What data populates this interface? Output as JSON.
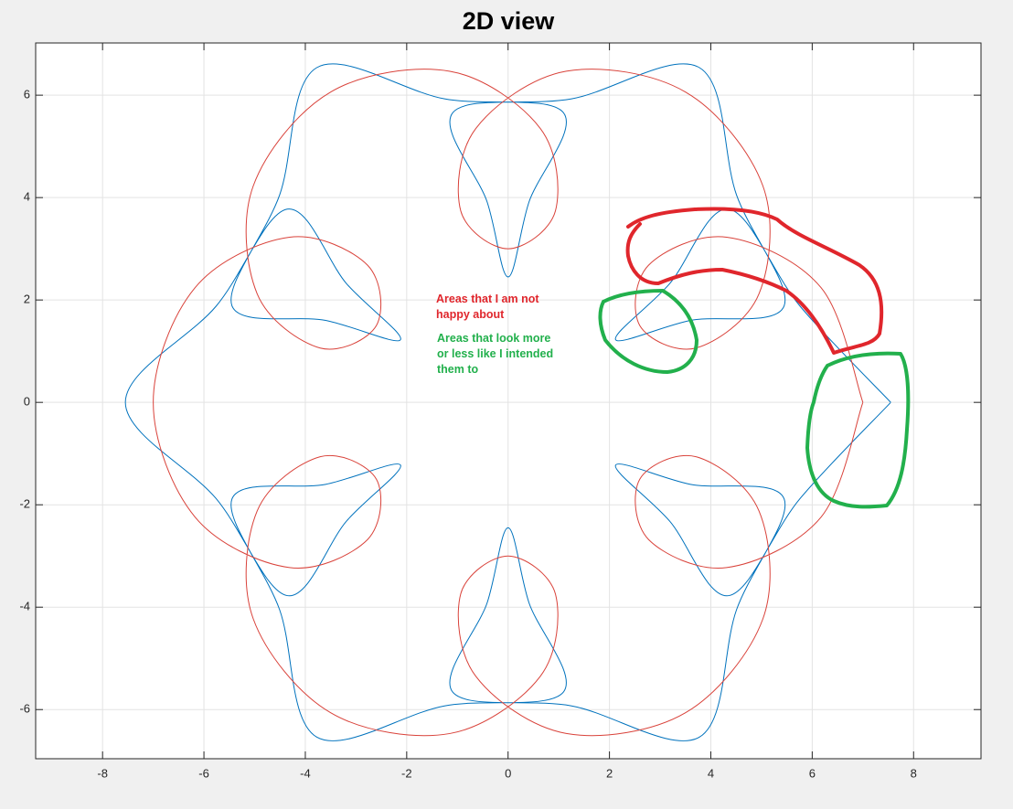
{
  "chart_data": {
    "type": "line",
    "title": "2D view",
    "xlim": [
      -9.32,
      9.33
    ],
    "ylim": [
      -6.96,
      7.02
    ],
    "xticks": [
      -8,
      -6,
      -4,
      -2,
      0,
      2,
      4,
      6,
      8
    ],
    "yticks": [
      -6,
      -4,
      -2,
      0,
      2,
      4,
      6
    ],
    "grid": true,
    "series": [
      {
        "color": "#0072bd",
        "x": [
          7.55,
          5.761,
          4.357,
          3.186,
          2.122,
          3.599,
          5.447,
          4.507,
          3.775,
          1.254,
          -1.09,
          -0.414,
          0,
          0.414,
          1.091,
          -1.253,
          -3.775,
          -4.507,
          -5.447,
          -3.599,
          -2.122,
          -3.186,
          -4.357,
          -5.761,
          -7.55,
          -5.761,
          -4.357,
          -3.186,
          -2.122,
          -3.599,
          -5.447,
          -4.507,
          -3.775,
          -1.254,
          1.09,
          0.414,
          0,
          -0.414,
          -1.091,
          1.253,
          3.775,
          4.507,
          5.447,
          3.599,
          2.122,
          3.186,
          4.357,
          5.761,
          7.55
        ],
        "y": [
          0,
          1.878,
          3.774,
          2.317,
          1.225,
          1.601,
          1.886,
          4.05,
          6.538,
          5.928,
          5.66,
          3.918,
          2.45,
          3.918,
          5.66,
          5.928,
          6.538,
          4.05,
          1.886,
          1.601,
          1.225,
          2.317,
          3.774,
          1.878,
          0,
          -1.878,
          -3.774,
          -2.317,
          -1.225,
          -1.601,
          -1.886,
          -4.05,
          -6.538,
          -5.928,
          -5.66,
          -3.918,
          -2.45,
          -3.918,
          -5.66,
          -5.928,
          -6.538,
          -4.05,
          -1.886,
          -1.601,
          -1.225,
          -2.317,
          -3.774,
          -1.878,
          0
        ]
      },
      {
        "color": "#d9423a",
        "x": [
          7,
          6.175,
          4.312,
          2.772,
          2.598,
          3.706,
          4.95,
          5.027,
          3.5,
          1.148,
          -0.638,
          -0.934,
          0,
          0.934,
          0.638,
          -1.148,
          -3.5,
          -5.027,
          -4.95,
          -3.706,
          -2.598,
          -2.772,
          -4.312,
          -6.175,
          -7,
          -6.175,
          -4.312,
          -2.772,
          -2.598,
          -3.706,
          -4.95,
          -5.027,
          -3.5,
          -1.148,
          0.638,
          0.934,
          0,
          -0.934,
          -0.638,
          1.148,
          3.5,
          5.027,
          4.95,
          3.706,
          2.598,
          2.772,
          4.312,
          6.175,
          7
        ],
        "y": [
          0,
          2.24,
          3.226,
          2.679,
          1.5,
          1.061,
          2.121,
          4.228,
          6.062,
          6.468,
          5.347,
          3.741,
          3,
          3.74,
          5.348,
          6.467,
          6.062,
          4.228,
          2.121,
          1.061,
          1.5,
          2.679,
          3.226,
          2.24,
          0,
          -2.24,
          -3.226,
          -2.679,
          -1.5,
          -1.061,
          -2.121,
          -4.228,
          -6.062,
          -6.468,
          -5.347,
          -3.741,
          -3,
          -3.74,
          -5.348,
          -6.467,
          -6.062,
          -4.228,
          -2.121,
          -1.061,
          -1.5,
          -2.679,
          -3.226,
          -2.24,
          0
        ]
      }
    ],
    "annotations": [
      {
        "text": "Areas that I am not happy about",
        "color": "#e0262c"
      },
      {
        "text": "Areas that look more or less like I intended them to",
        "color": "#22b04c"
      }
    ]
  }
}
